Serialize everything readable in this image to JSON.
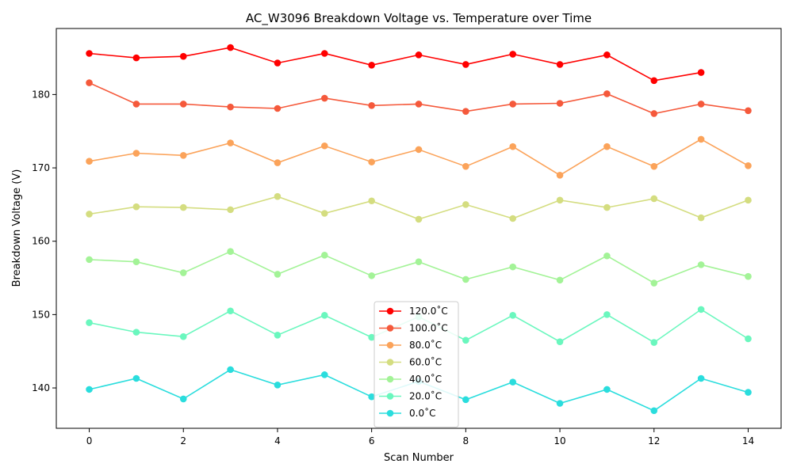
{
  "chart_data": {
    "type": "line",
    "title": "AC_W3096 Breakdown Voltage vs. Temperature over Time",
    "xlabel": "Scan Number",
    "ylabel": "Breakdown Voltage (V)",
    "xlim": [
      -0.7,
      14.7
    ],
    "ylim": [
      134.5,
      189.0
    ],
    "xticks": [
      0,
      2,
      4,
      6,
      8,
      10,
      12,
      14
    ],
    "yticks": [
      140,
      150,
      160,
      170,
      180
    ],
    "grid": false,
    "legend_position": "lower-center",
    "series": [
      {
        "name": "120.0$^\\circ$C",
        "display": "120.0˚C",
        "color": "#ff0000",
        "x": [
          0,
          1,
          2,
          3,
          4,
          5,
          6,
          7,
          8,
          9,
          10,
          11,
          12,
          13
        ],
        "y": [
          185.6,
          185.0,
          185.2,
          186.4,
          184.3,
          185.6,
          184.0,
          185.4,
          184.1,
          185.5,
          184.1,
          185.4,
          181.9,
          183.0
        ]
      },
      {
        "name": "100.0$^\\circ$C",
        "display": "100.0˚C",
        "color": "#f5593b",
        "x": [
          0,
          1,
          2,
          3,
          4,
          5,
          6,
          7,
          8,
          9,
          10,
          11,
          12,
          13,
          14
        ],
        "y": [
          181.6,
          178.7,
          178.7,
          178.3,
          178.1,
          179.5,
          178.5,
          178.7,
          177.7,
          178.7,
          178.8,
          180.1,
          177.4,
          178.7,
          177.8
        ]
      },
      {
        "name": "80.0$^\\circ$C",
        "display": "80.0˚C",
        "color": "#fba35a",
        "x": [
          0,
          1,
          2,
          3,
          4,
          5,
          6,
          7,
          8,
          9,
          10,
          11,
          12,
          13,
          14
        ],
        "y": [
          170.9,
          172.0,
          171.7,
          173.4,
          170.7,
          173.0,
          170.8,
          172.5,
          170.2,
          172.9,
          169.0,
          172.9,
          170.2,
          173.9,
          170.3
        ]
      },
      {
        "name": "60.0$^\\circ$C",
        "display": "60.0˚C",
        "color": "#d4dd80",
        "x": [
          0,
          1,
          2,
          3,
          4,
          5,
          6,
          7,
          8,
          9,
          10,
          11,
          12,
          13,
          14
        ],
        "y": [
          163.7,
          164.7,
          164.6,
          164.3,
          166.1,
          163.8,
          165.5,
          163.0,
          165.0,
          163.1,
          165.6,
          164.6,
          165.8,
          163.2,
          165.6
        ]
      },
      {
        "name": "40.0$^\\circ$C",
        "display": "40.0˚C",
        "color": "#a3f397",
        "x": [
          0,
          1,
          2,
          3,
          4,
          5,
          6,
          7,
          8,
          9,
          10,
          11,
          12,
          13,
          14
        ],
        "y": [
          157.5,
          157.2,
          155.7,
          158.6,
          155.5,
          158.1,
          155.3,
          157.2,
          154.8,
          156.5,
          154.7,
          158.0,
          154.3,
          156.8,
          155.2
        ]
      },
      {
        "name": "20.0$^\\circ$C",
        "display": "20.0˚C",
        "color": "#6af7be",
        "x": [
          0,
          1,
          2,
          3,
          4,
          5,
          6,
          7,
          8,
          9,
          10,
          11,
          12,
          13,
          14
        ],
        "y": [
          148.9,
          147.6,
          147.0,
          150.5,
          147.2,
          149.9,
          146.9,
          149.7,
          146.5,
          149.9,
          146.3,
          150.0,
          146.2,
          150.7,
          146.7
        ]
      },
      {
        "name": "0.0$^\\circ$C",
        "display": "0.0˚C",
        "color": "#2adddd",
        "x": [
          0,
          1,
          2,
          3,
          4,
          5,
          6,
          7,
          8,
          9,
          10,
          11,
          12,
          13,
          14
        ],
        "y": [
          139.8,
          141.3,
          138.5,
          142.5,
          140.4,
          141.8,
          138.8,
          140.9,
          138.4,
          140.8,
          137.9,
          139.8,
          136.9,
          141.3,
          139.4
        ]
      }
    ]
  }
}
